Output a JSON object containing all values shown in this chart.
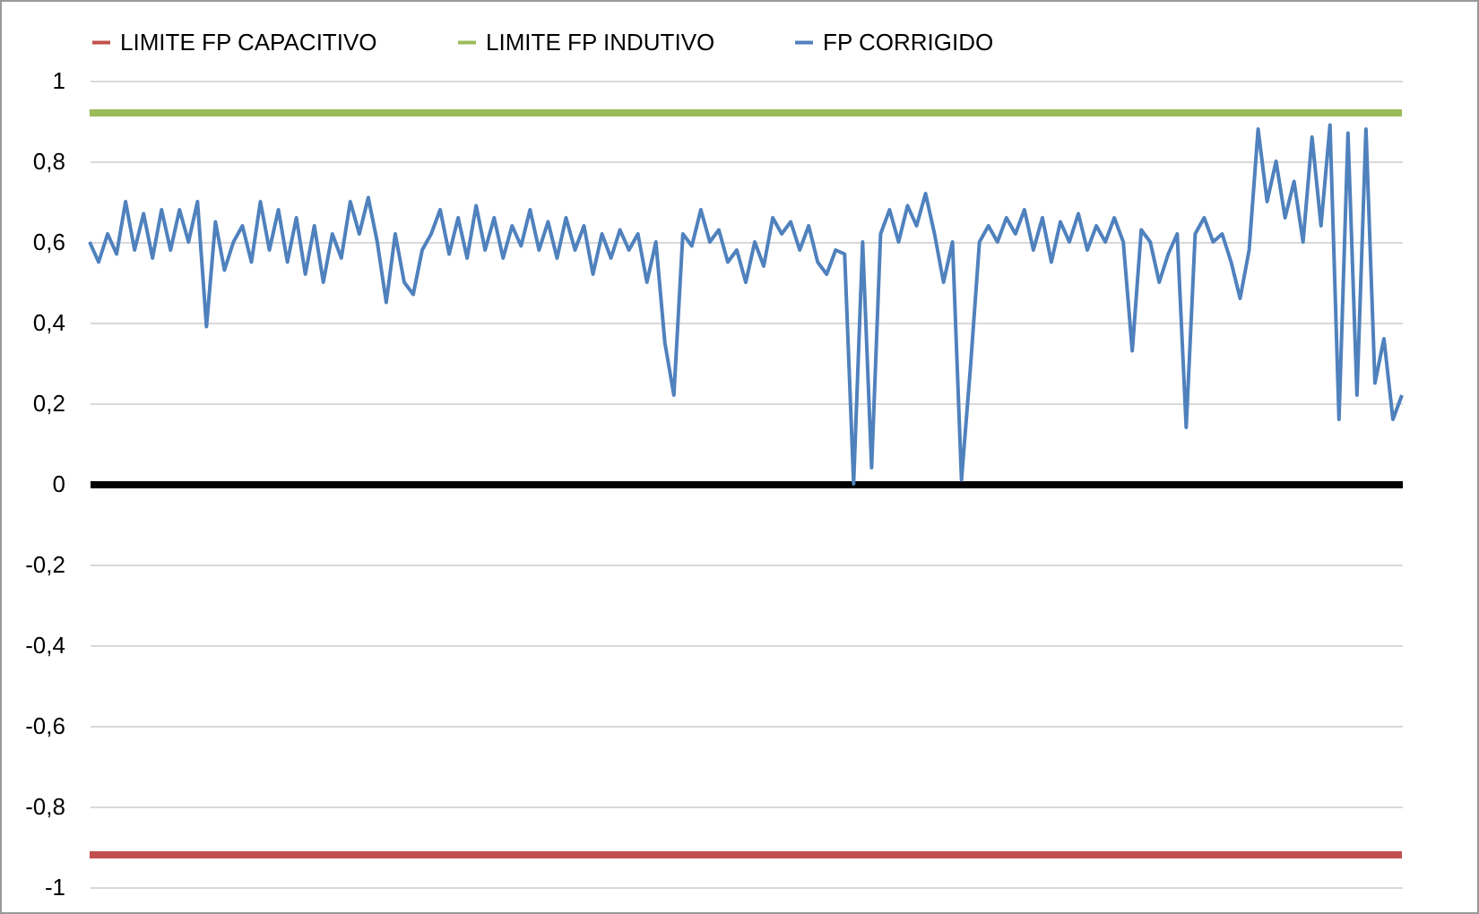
{
  "chart_data": {
    "type": "line",
    "categories": [
      null,
      null,
      null,
      null,
      null,
      null,
      null,
      null,
      null,
      null,
      null,
      null,
      null,
      null,
      null,
      null,
      null,
      null,
      null,
      null,
      null,
      null,
      null,
      null,
      null,
      null,
      null,
      null,
      null,
      null,
      null,
      null,
      null,
      null,
      null,
      null,
      null,
      null,
      null,
      null,
      null,
      null,
      null,
      null,
      null,
      null,
      null,
      null,
      null,
      null,
      null,
      null,
      null,
      null,
      null,
      null,
      null,
      null,
      null,
      null,
      null,
      null,
      null,
      null,
      null,
      null,
      null,
      null,
      null,
      null,
      null,
      null,
      null,
      null,
      null,
      null,
      null,
      null,
      null,
      null,
      null,
      null,
      null,
      null,
      null,
      null,
      null,
      null,
      null,
      null,
      null,
      null,
      null,
      null,
      null,
      null,
      null,
      null,
      null,
      null,
      null,
      null,
      null,
      null,
      null,
      null,
      null,
      null,
      null,
      null,
      null,
      null,
      null,
      null,
      null,
      null,
      null,
      null,
      null,
      null,
      null,
      null,
      null,
      null,
      null,
      null,
      null,
      null,
      null,
      null,
      null,
      null,
      null,
      null,
      null,
      null,
      null,
      null,
      null,
      null,
      null,
      null,
      null,
      null,
      null,
      null,
      null
    ],
    "series": [
      {
        "name": "LIMITE FP CAPACITIVO",
        "color": "#c0504d",
        "values": [
          -0.92,
          -0.92,
          -0.92,
          -0.92,
          -0.92,
          -0.92,
          -0.92,
          -0.92,
          -0.92,
          -0.92,
          -0.92,
          -0.92,
          -0.92,
          -0.92,
          -0.92,
          -0.92,
          -0.92,
          -0.92,
          -0.92,
          -0.92,
          -0.92,
          -0.92,
          -0.92,
          -0.92,
          -0.92,
          -0.92,
          -0.92,
          -0.92,
          -0.92,
          -0.92,
          -0.92,
          -0.92,
          -0.92,
          -0.92,
          -0.92,
          -0.92,
          -0.92,
          -0.92,
          -0.92,
          -0.92,
          -0.92,
          -0.92,
          -0.92,
          -0.92,
          -0.92,
          -0.92,
          -0.92,
          -0.92,
          -0.92,
          -0.92,
          -0.92,
          -0.92,
          -0.92,
          -0.92,
          -0.92,
          -0.92,
          -0.92,
          -0.92,
          -0.92,
          -0.92,
          -0.92,
          -0.92,
          -0.92,
          -0.92,
          -0.92,
          -0.92,
          -0.92,
          -0.92,
          -0.92,
          -0.92,
          -0.92,
          -0.92,
          -0.92,
          -0.92,
          -0.92,
          -0.92,
          -0.92,
          -0.92,
          -0.92,
          -0.92,
          -0.92,
          -0.92,
          -0.92,
          -0.92,
          -0.92,
          -0.92,
          -0.92,
          -0.92,
          -0.92,
          -0.92,
          -0.92,
          -0.92,
          -0.92,
          -0.92,
          -0.92,
          -0.92,
          -0.92,
          -0.92,
          -0.92,
          -0.92,
          -0.92,
          -0.92,
          -0.92,
          -0.92,
          -0.92,
          -0.92,
          -0.92,
          -0.92,
          -0.92,
          -0.92,
          -0.92,
          -0.92,
          -0.92,
          -0.92,
          -0.92,
          -0.92,
          -0.92,
          -0.92,
          -0.92,
          -0.92,
          -0.92,
          -0.92,
          -0.92,
          -0.92,
          -0.92,
          -0.92,
          -0.92,
          -0.92,
          -0.92,
          -0.92,
          -0.92,
          -0.92,
          -0.92,
          -0.92,
          -0.92,
          -0.92,
          -0.92,
          -0.92,
          -0.92,
          -0.92,
          -0.92,
          -0.92,
          -0.92,
          -0.92,
          -0.92,
          -0.92,
          -0.92
        ]
      },
      {
        "name": "LIMITE FP INDUTIVO",
        "color": "#9bbb59",
        "values": [
          0.92,
          0.92,
          0.92,
          0.92,
          0.92,
          0.92,
          0.92,
          0.92,
          0.92,
          0.92,
          0.92,
          0.92,
          0.92,
          0.92,
          0.92,
          0.92,
          0.92,
          0.92,
          0.92,
          0.92,
          0.92,
          0.92,
          0.92,
          0.92,
          0.92,
          0.92,
          0.92,
          0.92,
          0.92,
          0.92,
          0.92,
          0.92,
          0.92,
          0.92,
          0.92,
          0.92,
          0.92,
          0.92,
          0.92,
          0.92,
          0.92,
          0.92,
          0.92,
          0.92,
          0.92,
          0.92,
          0.92,
          0.92,
          0.92,
          0.92,
          0.92,
          0.92,
          0.92,
          0.92,
          0.92,
          0.92,
          0.92,
          0.92,
          0.92,
          0.92,
          0.92,
          0.92,
          0.92,
          0.92,
          0.92,
          0.92,
          0.92,
          0.92,
          0.92,
          0.92,
          0.92,
          0.92,
          0.92,
          0.92,
          0.92,
          0.92,
          0.92,
          0.92,
          0.92,
          0.92,
          0.92,
          0.92,
          0.92,
          0.92,
          0.92,
          0.92,
          0.92,
          0.92,
          0.92,
          0.92,
          0.92,
          0.92,
          0.92,
          0.92,
          0.92,
          0.92,
          0.92,
          0.92,
          0.92,
          0.92,
          0.92,
          0.92,
          0.92,
          0.92,
          0.92,
          0.92,
          0.92,
          0.92,
          0.92,
          0.92,
          0.92,
          0.92,
          0.92,
          0.92,
          0.92,
          0.92,
          0.92,
          0.92,
          0.92,
          0.92,
          0.92,
          0.92,
          0.92,
          0.92,
          0.92,
          0.92,
          0.92,
          0.92,
          0.92,
          0.92,
          0.92,
          0.92,
          0.92,
          0.92,
          0.92,
          0.92,
          0.92,
          0.92,
          0.92,
          0.92,
          0.92,
          0.92,
          0.92,
          0.92,
          0.92,
          0.92,
          0.92
        ]
      },
      {
        "name": "FP CORRIGIDO",
        "color": "#4f81bd",
        "values": [
          0.6,
          0.55,
          0.62,
          0.57,
          0.7,
          0.58,
          0.67,
          0.56,
          0.68,
          0.58,
          0.68,
          0.6,
          0.7,
          0.39,
          0.65,
          0.53,
          0.6,
          0.64,
          0.55,
          0.7,
          0.58,
          0.68,
          0.55,
          0.66,
          0.52,
          0.64,
          0.5,
          0.62,
          0.56,
          0.7,
          0.62,
          0.71,
          0.6,
          0.45,
          0.62,
          0.5,
          0.47,
          0.58,
          0.62,
          0.68,
          0.57,
          0.66,
          0.56,
          0.69,
          0.58,
          0.66,
          0.56,
          0.64,
          0.59,
          0.68,
          0.58,
          0.65,
          0.56,
          0.66,
          0.58,
          0.64,
          0.52,
          0.62,
          0.56,
          0.63,
          0.58,
          0.62,
          0.5,
          0.6,
          0.35,
          0.22,
          0.62,
          0.59,
          0.68,
          0.6,
          0.63,
          0.55,
          0.58,
          0.5,
          0.6,
          0.54,
          0.66,
          0.62,
          0.65,
          0.58,
          0.64,
          0.55,
          0.52,
          0.58,
          0.57,
          0.0,
          0.6,
          0.04,
          0.62,
          0.68,
          0.6,
          0.69,
          0.64,
          0.72,
          0.62,
          0.5,
          0.6,
          0.01,
          0.29,
          0.6,
          0.64,
          0.6,
          0.66,
          0.62,
          0.68,
          0.58,
          0.66,
          0.55,
          0.65,
          0.6,
          0.67,
          0.58,
          0.64,
          0.6,
          0.66,
          0.6,
          0.33,
          0.63,
          0.6,
          0.5,
          0.57,
          0.62,
          0.14,
          0.62,
          0.66,
          0.6,
          0.62,
          0.55,
          0.46,
          0.58,
          0.88,
          0.7,
          0.8,
          0.66,
          0.75,
          0.6,
          0.86,
          0.64,
          0.89,
          0.16,
          0.87,
          0.22,
          0.88,
          0.25,
          0.36,
          0.16,
          0.22
        ]
      }
    ],
    "ylim": [
      -1,
      1
    ],
    "yticks": [
      {
        "value": -1,
        "label": "-1"
      },
      {
        "value": -0.8,
        "label": "-0,8"
      },
      {
        "value": -0.6,
        "label": "-0,6"
      },
      {
        "value": -0.4,
        "label": "-0,4"
      },
      {
        "value": -0.2,
        "label": "-0,2"
      },
      {
        "value": 0,
        "label": "0"
      },
      {
        "value": 0.2,
        "label": "0,2"
      },
      {
        "value": 0.4,
        "label": "0,4"
      },
      {
        "value": 0.6,
        "label": "0,6"
      },
      {
        "value": 0.8,
        "label": "0,8"
      },
      {
        "value": 1,
        "label": "1"
      }
    ],
    "grid": "y",
    "legend": "top",
    "line_style": "solid"
  }
}
